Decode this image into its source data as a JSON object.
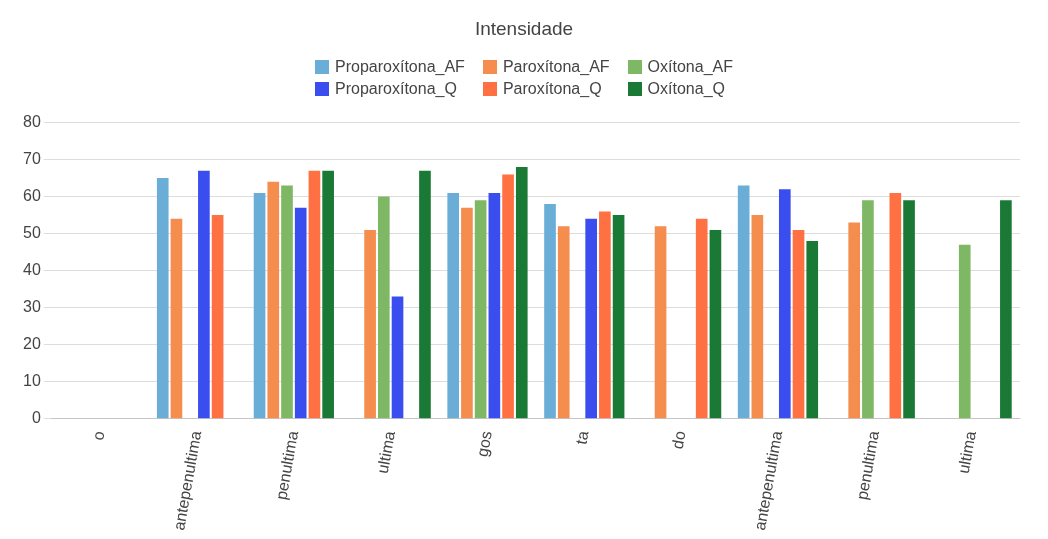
{
  "chart_data": {
    "type": "bar",
    "title": "Intensidade",
    "categories": [
      "o",
      "antepenultima",
      "penultima",
      "ultima",
      "gos",
      "ta",
      "do",
      "antepenultima",
      "penultima",
      "ultima"
    ],
    "series": [
      {
        "name": "Proparoxítona_AF",
        "color": "#6aaed8",
        "values": [
          null,
          65,
          61,
          null,
          61,
          58,
          null,
          63,
          null,
          null
        ]
      },
      {
        "name": "Paroxítona_AF",
        "color": "#f58d4f",
        "values": [
          null,
          54,
          64,
          51,
          57,
          52,
          52,
          55,
          53,
          null
        ]
      },
      {
        "name": "Oxítona_AF",
        "color": "#7fb865",
        "values": [
          null,
          null,
          63,
          60,
          59,
          null,
          null,
          null,
          59,
          47
        ]
      },
      {
        "name": "Proparoxítona_Q",
        "color": "#3a4ef0",
        "values": [
          null,
          67,
          57,
          33,
          61,
          54,
          null,
          62,
          null,
          null
        ]
      },
      {
        "name": "Paroxítona_Q",
        "color": "#ff7043",
        "values": [
          null,
          55,
          67,
          null,
          66,
          56,
          54,
          51,
          61,
          null
        ]
      },
      {
        "name": "Oxítona_Q",
        "color": "#1a7a35",
        "values": [
          null,
          null,
          67,
          67,
          68,
          55,
          51,
          48,
          59,
          59
        ]
      }
    ],
    "ylim": [
      0,
      80
    ],
    "yticks": [
      0,
      10,
      20,
      30,
      40,
      50,
      60,
      70,
      80
    ],
    "grid": "y",
    "legend": "top"
  }
}
